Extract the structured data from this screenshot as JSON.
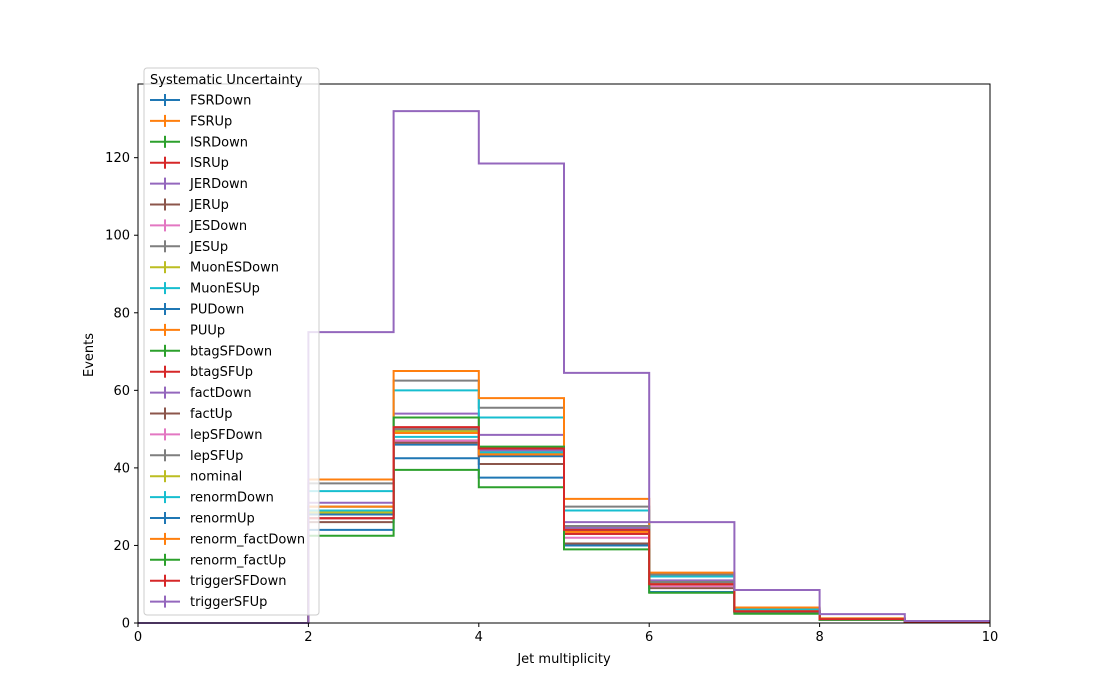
{
  "chart_data": {
    "type": "line",
    "subtype": "step-histogram",
    "xlabel": "Jet multiplicity",
    "ylabel": "Events",
    "xlim": [
      0,
      10
    ],
    "ylim": [
      0,
      139
    ],
    "xticks": [
      0,
      2,
      4,
      6,
      8,
      10
    ],
    "yticks": [
      0,
      20,
      40,
      60,
      80,
      100,
      120
    ],
    "grid": false,
    "legend_title": "Systematic Uncertainty",
    "legend_position": "upper-left",
    "bin_edges": [
      0,
      1,
      2,
      3,
      4,
      5,
      6,
      7,
      8,
      9,
      10
    ],
    "series": [
      {
        "name": "FSRDown",
        "color": "#1f77b4",
        "values": [
          0,
          0,
          27,
          46,
          43,
          24,
          10,
          3,
          1,
          0.3
        ]
      },
      {
        "name": "FSRUp",
        "color": "#ff7f0e",
        "values": [
          0,
          0,
          29,
          49,
          44,
          24,
          10,
          3.2,
          1,
          0.3
        ]
      },
      {
        "name": "ISRDown",
        "color": "#2ca02c",
        "values": [
          0,
          0,
          28,
          47,
          45,
          24,
          10,
          3,
          1,
          0.3
        ]
      },
      {
        "name": "ISRUp",
        "color": "#d62728",
        "values": [
          0,
          0,
          28,
          47,
          44,
          24,
          10,
          3,
          1,
          0.3
        ]
      },
      {
        "name": "JERDown",
        "color": "#9467bd",
        "values": [
          0,
          0,
          31,
          54,
          48.5,
          26,
          11,
          3.3,
          1,
          0.3
        ]
      },
      {
        "name": "JERUp",
        "color": "#8c564b",
        "values": [
          0,
          0,
          28,
          47,
          44,
          23,
          10,
          3,
          1,
          0.3
        ]
      },
      {
        "name": "JESDown",
        "color": "#e377c2",
        "values": [
          0,
          0,
          29,
          50,
          44,
          24,
          10,
          3,
          1,
          0.3
        ]
      },
      {
        "name": "JESUp",
        "color": "#7f7f7f",
        "values": [
          0,
          0,
          36,
          62.5,
          55.5,
          30,
          12.5,
          3.8,
          1.2,
          0.4
        ]
      },
      {
        "name": "MuonESDown",
        "color": "#bcbd22",
        "values": [
          0,
          0,
          29,
          49.5,
          44,
          24,
          10,
          3,
          1,
          0.3
        ]
      },
      {
        "name": "MuonESUp",
        "color": "#17becf",
        "values": [
          0,
          0,
          34,
          60,
          53,
          29,
          12,
          3.6,
          1.1,
          0.35
        ]
      },
      {
        "name": "PUDown",
        "color": "#1f77b4",
        "values": [
          0,
          0,
          28,
          47,
          44,
          24,
          10,
          3,
          1,
          0.3
        ]
      },
      {
        "name": "PUUp",
        "color": "#ff7f0e",
        "values": [
          0,
          0,
          37,
          65,
          58,
          32,
          13,
          4,
          1.2,
          0.4
        ]
      },
      {
        "name": "btagSFDown",
        "color": "#2ca02c",
        "values": [
          0,
          0,
          30,
          53,
          45.5,
          25,
          10.5,
          3.1,
          1,
          0.3
        ]
      },
      {
        "name": "btagSFUp",
        "color": "#d62728",
        "values": [
          0,
          0,
          27,
          46.5,
          43.5,
          23,
          9.8,
          3,
          1,
          0.3
        ]
      },
      {
        "name": "factDown",
        "color": "#9467bd",
        "values": [
          0,
          0,
          29,
          50,
          44.5,
          24.5,
          10,
          3,
          1,
          0.3
        ]
      },
      {
        "name": "factUp",
        "color": "#8c564b",
        "values": [
          0,
          0,
          26,
          46.5,
          41,
          20.5,
          9,
          2.8,
          0.9,
          0.3
        ]
      },
      {
        "name": "lepSFDown",
        "color": "#e377c2",
        "values": [
          0,
          0,
          27,
          47,
          44,
          22,
          9.5,
          3,
          1,
          0.3
        ]
      },
      {
        "name": "lepSFUp",
        "color": "#7f7f7f",
        "values": [
          0,
          0,
          30,
          50,
          45,
          25,
          10.5,
          3.1,
          1,
          0.3
        ]
      },
      {
        "name": "nominal",
        "color": "#bcbd22",
        "values": [
          0,
          0,
          28.5,
          49,
          44,
          24,
          10,
          3,
          1,
          0.3
        ]
      },
      {
        "name": "renormDown",
        "color": "#17becf",
        "values": [
          0,
          0,
          29,
          48,
          44,
          24,
          10,
          3,
          1,
          0.3
        ]
      },
      {
        "name": "renormUp",
        "color": "#1f77b4",
        "values": [
          0,
          0,
          24,
          42.5,
          37.5,
          20,
          8,
          2.6,
          0.85,
          0.25
        ]
      },
      {
        "name": "renorm_factDown",
        "color": "#ff7f0e",
        "values": [
          0,
          0,
          30,
          49,
          43.5,
          23.5,
          10,
          3,
          1,
          0.3
        ]
      },
      {
        "name": "renorm_factUp",
        "color": "#2ca02c",
        "values": [
          0,
          0,
          22.5,
          39.5,
          35,
          19,
          7.8,
          2.4,
          0.8,
          0.25
        ]
      },
      {
        "name": "triggerSFDown",
        "color": "#d62728",
        "values": [
          0,
          0,
          27,
          50.5,
          45,
          24,
          10,
          3,
          1,
          0.3
        ]
      },
      {
        "name": "triggerSFUp",
        "color": "#9467bd",
        "values": [
          0,
          0,
          75,
          132,
          118.5,
          64.5,
          26,
          8.5,
          2.3,
          0.5
        ]
      }
    ]
  }
}
